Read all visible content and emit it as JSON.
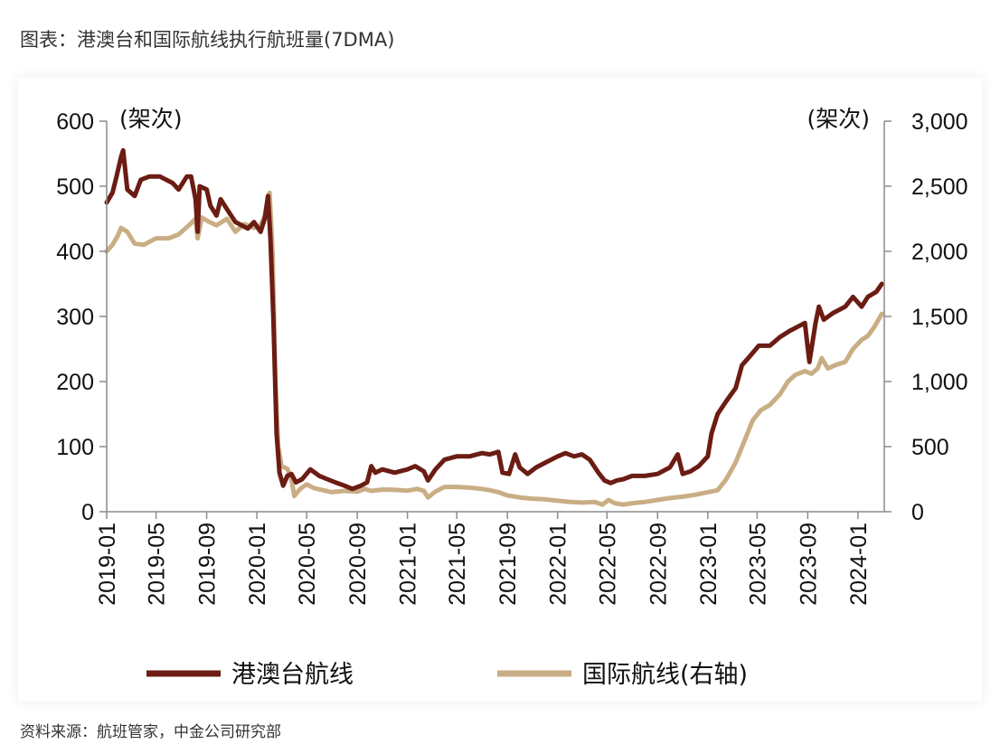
{
  "figure": {
    "title": "图表：港澳台和国际航线执行航班量(7DMA)",
    "source": "资料来源：航班管家，中金公司研究部"
  },
  "chart_data": {
    "type": "line",
    "x_tick_labels": [
      "2019-01",
      "2019-05",
      "2019-09",
      "2020-01",
      "2020-05",
      "2020-09",
      "2021-01",
      "2021-05",
      "2021-09",
      "2022-01",
      "2022-05",
      "2022-09",
      "2023-01",
      "2023-05",
      "2023-09",
      "2024-01"
    ],
    "y_left": {
      "ticks": [
        0,
        100,
        200,
        300,
        400,
        500,
        600
      ],
      "tick_labels": [
        "0",
        "100",
        "200",
        "300",
        "400",
        "500",
        "600"
      ],
      "ylim": [
        0,
        600
      ],
      "unit": "(架次)"
    },
    "y_right": {
      "ticks": [
        0,
        500,
        1000,
        1500,
        2000,
        2500,
        3000
      ],
      "tick_labels": [
        "0",
        "500",
        "1,000",
        "1,500",
        "2,000",
        "2,500",
        "3,000"
      ],
      "ylim": [
        0,
        3000
      ],
      "unit": "(架次)"
    },
    "colors": {
      "hmt": "#6b1c13",
      "intl": "#c9ae85"
    },
    "series": [
      {
        "name": "港澳台航线",
        "axis": "left",
        "points": [
          [
            "2019-01-01",
            475
          ],
          [
            "2019-01-15",
            490
          ],
          [
            "2019-01-25",
            515
          ],
          [
            "2019-02-05",
            545
          ],
          [
            "2019-02-10",
            555
          ],
          [
            "2019-02-20",
            495
          ],
          [
            "2019-03-10",
            485
          ],
          [
            "2019-03-25",
            510
          ],
          [
            "2019-04-15",
            515
          ],
          [
            "2019-05-10",
            515
          ],
          [
            "2019-06-10",
            505
          ],
          [
            "2019-06-25",
            495
          ],
          [
            "2019-07-15",
            515
          ],
          [
            "2019-07-25",
            515
          ],
          [
            "2019-08-05",
            480
          ],
          [
            "2019-08-10",
            430
          ],
          [
            "2019-08-15",
            500
          ],
          [
            "2019-09-01",
            495
          ],
          [
            "2019-09-10",
            470
          ],
          [
            "2019-09-25",
            455
          ],
          [
            "2019-10-05",
            480
          ],
          [
            "2019-10-20",
            465
          ],
          [
            "2019-11-10",
            445
          ],
          [
            "2019-11-25",
            440
          ],
          [
            "2019-12-10",
            435
          ],
          [
            "2019-12-25",
            445
          ],
          [
            "2020-01-10",
            430
          ],
          [
            "2020-01-20",
            450
          ],
          [
            "2020-01-28",
            485
          ],
          [
            "2020-02-03",
            420
          ],
          [
            "2020-02-10",
            300
          ],
          [
            "2020-02-18",
            120
          ],
          [
            "2020-02-25",
            60
          ],
          [
            "2020-03-05",
            40
          ],
          [
            "2020-03-15",
            55
          ],
          [
            "2020-03-25",
            58
          ],
          [
            "2020-04-05",
            45
          ],
          [
            "2020-04-20",
            50
          ],
          [
            "2020-05-10",
            65
          ],
          [
            "2020-06-01",
            55
          ],
          [
            "2020-06-20",
            50
          ],
          [
            "2020-07-10",
            45
          ],
          [
            "2020-08-01",
            40
          ],
          [
            "2020-08-20",
            35
          ],
          [
            "2020-09-10",
            40
          ],
          [
            "2020-09-25",
            45
          ],
          [
            "2020-10-05",
            70
          ],
          [
            "2020-10-15",
            60
          ],
          [
            "2020-11-01",
            65
          ],
          [
            "2020-12-01",
            60
          ],
          [
            "2021-01-01",
            65
          ],
          [
            "2021-01-20",
            70
          ],
          [
            "2021-02-10",
            62
          ],
          [
            "2021-02-20",
            48
          ],
          [
            "2021-03-10",
            65
          ],
          [
            "2021-04-01",
            80
          ],
          [
            "2021-05-01",
            85
          ],
          [
            "2021-06-01",
            85
          ],
          [
            "2021-07-01",
            90
          ],
          [
            "2021-07-20",
            88
          ],
          [
            "2021-08-10",
            92
          ],
          [
            "2021-08-20",
            60
          ],
          [
            "2021-09-05",
            58
          ],
          [
            "2021-09-20",
            88
          ],
          [
            "2021-10-01",
            68
          ],
          [
            "2021-10-20",
            58
          ],
          [
            "2021-11-10",
            68
          ],
          [
            "2021-12-01",
            75
          ],
          [
            "2022-01-01",
            85
          ],
          [
            "2022-01-20",
            90
          ],
          [
            "2022-02-10",
            85
          ],
          [
            "2022-03-01",
            88
          ],
          [
            "2022-03-20",
            80
          ],
          [
            "2022-04-10",
            60
          ],
          [
            "2022-04-25",
            48
          ],
          [
            "2022-05-10",
            44
          ],
          [
            "2022-05-25",
            48
          ],
          [
            "2022-06-10",
            50
          ],
          [
            "2022-07-01",
            55
          ],
          [
            "2022-08-01",
            55
          ],
          [
            "2022-09-01",
            58
          ],
          [
            "2022-10-01",
            68
          ],
          [
            "2022-10-20",
            88
          ],
          [
            "2022-11-01",
            58
          ],
          [
            "2022-11-20",
            62
          ],
          [
            "2022-12-10",
            70
          ],
          [
            "2023-01-01",
            85
          ],
          [
            "2023-01-10",
            120
          ],
          [
            "2023-01-25",
            150
          ],
          [
            "2023-02-15",
            170
          ],
          [
            "2023-03-10",
            190
          ],
          [
            "2023-03-25",
            225
          ],
          [
            "2023-04-15",
            240
          ],
          [
            "2023-05-05",
            255
          ],
          [
            "2023-06-01",
            255
          ],
          [
            "2023-06-25",
            268
          ],
          [
            "2023-07-20",
            278
          ],
          [
            "2023-08-10",
            285
          ],
          [
            "2023-08-25",
            290
          ],
          [
            "2023-09-05",
            230
          ],
          [
            "2023-09-20",
            290
          ],
          [
            "2023-09-28",
            315
          ],
          [
            "2023-10-10",
            295
          ],
          [
            "2023-11-01",
            305
          ],
          [
            "2023-12-01",
            315
          ],
          [
            "2023-12-20",
            330
          ],
          [
            "2024-01-10",
            315
          ],
          [
            "2024-01-25",
            330
          ],
          [
            "2024-02-15",
            338
          ],
          [
            "2024-02-28",
            350
          ]
        ]
      },
      {
        "name": "国际航线(右轴)",
        "axis": "right",
        "points": [
          [
            "2019-01-01",
            2000
          ],
          [
            "2019-01-15",
            2050
          ],
          [
            "2019-01-28",
            2120
          ],
          [
            "2019-02-05",
            2180
          ],
          [
            "2019-02-20",
            2150
          ],
          [
            "2019-03-10",
            2060
          ],
          [
            "2019-04-01",
            2050
          ],
          [
            "2019-05-01",
            2100
          ],
          [
            "2019-06-01",
            2100
          ],
          [
            "2019-06-25",
            2130
          ],
          [
            "2019-07-20",
            2200
          ],
          [
            "2019-08-05",
            2250
          ],
          [
            "2019-08-10",
            2100
          ],
          [
            "2019-08-20",
            2260
          ],
          [
            "2019-09-05",
            2230
          ],
          [
            "2019-09-25",
            2200
          ],
          [
            "2019-10-20",
            2250
          ],
          [
            "2019-11-10",
            2150
          ],
          [
            "2019-12-01",
            2210
          ],
          [
            "2019-12-25",
            2180
          ],
          [
            "2020-01-10",
            2200
          ],
          [
            "2020-01-25",
            2300
          ],
          [
            "2020-02-01",
            2450
          ],
          [
            "2020-02-08",
            2000
          ],
          [
            "2020-02-15",
            1000
          ],
          [
            "2020-02-22",
            500
          ],
          [
            "2020-03-01",
            350
          ],
          [
            "2020-03-15",
            330
          ],
          [
            "2020-03-25",
            250
          ],
          [
            "2020-04-01",
            120
          ],
          [
            "2020-04-15",
            175
          ],
          [
            "2020-05-01",
            210
          ],
          [
            "2020-05-20",
            180
          ],
          [
            "2020-06-10",
            165
          ],
          [
            "2020-07-01",
            150
          ],
          [
            "2020-08-01",
            160
          ],
          [
            "2020-09-01",
            155
          ],
          [
            "2020-09-20",
            175
          ],
          [
            "2020-10-05",
            160
          ],
          [
            "2020-11-01",
            170
          ],
          [
            "2020-12-01",
            168
          ],
          [
            "2021-01-01",
            162
          ],
          [
            "2021-01-25",
            175
          ],
          [
            "2021-02-10",
            160
          ],
          [
            "2021-02-20",
            110
          ],
          [
            "2021-03-10",
            155
          ],
          [
            "2021-04-01",
            190
          ],
          [
            "2021-05-01",
            190
          ],
          [
            "2021-06-01",
            185
          ],
          [
            "2021-07-01",
            175
          ],
          [
            "2021-07-20",
            165
          ],
          [
            "2021-08-10",
            150
          ],
          [
            "2021-09-01",
            125
          ],
          [
            "2021-10-01",
            110
          ],
          [
            "2021-11-01",
            100
          ],
          [
            "2021-12-01",
            95
          ],
          [
            "2022-01-01",
            85
          ],
          [
            "2022-02-01",
            75
          ],
          [
            "2022-03-01",
            70
          ],
          [
            "2022-04-01",
            75
          ],
          [
            "2022-04-20",
            55
          ],
          [
            "2022-05-05",
            90
          ],
          [
            "2022-05-20",
            65
          ],
          [
            "2022-06-10",
            55
          ],
          [
            "2022-07-01",
            65
          ],
          [
            "2022-08-01",
            75
          ],
          [
            "2022-09-01",
            90
          ],
          [
            "2022-10-01",
            105
          ],
          [
            "2022-11-01",
            115
          ],
          [
            "2022-12-01",
            130
          ],
          [
            "2023-01-01",
            150
          ],
          [
            "2023-01-25",
            165
          ],
          [
            "2023-02-15",
            250
          ],
          [
            "2023-03-10",
            380
          ],
          [
            "2023-04-01",
            550
          ],
          [
            "2023-04-20",
            700
          ],
          [
            "2023-05-10",
            780
          ],
          [
            "2023-06-01",
            820
          ],
          [
            "2023-06-25",
            900
          ],
          [
            "2023-07-15",
            1000
          ],
          [
            "2023-08-01",
            1050
          ],
          [
            "2023-08-25",
            1080
          ],
          [
            "2023-09-10",
            1060
          ],
          [
            "2023-09-25",
            1100
          ],
          [
            "2023-10-05",
            1180
          ],
          [
            "2023-10-20",
            1100
          ],
          [
            "2023-11-10",
            1130
          ],
          [
            "2023-12-01",
            1150
          ],
          [
            "2023-12-20",
            1250
          ],
          [
            "2024-01-10",
            1320
          ],
          [
            "2024-01-25",
            1350
          ],
          [
            "2024-02-10",
            1420
          ],
          [
            "2024-02-28",
            1520
          ]
        ]
      }
    ],
    "legend": {
      "position": "bottom"
    }
  }
}
